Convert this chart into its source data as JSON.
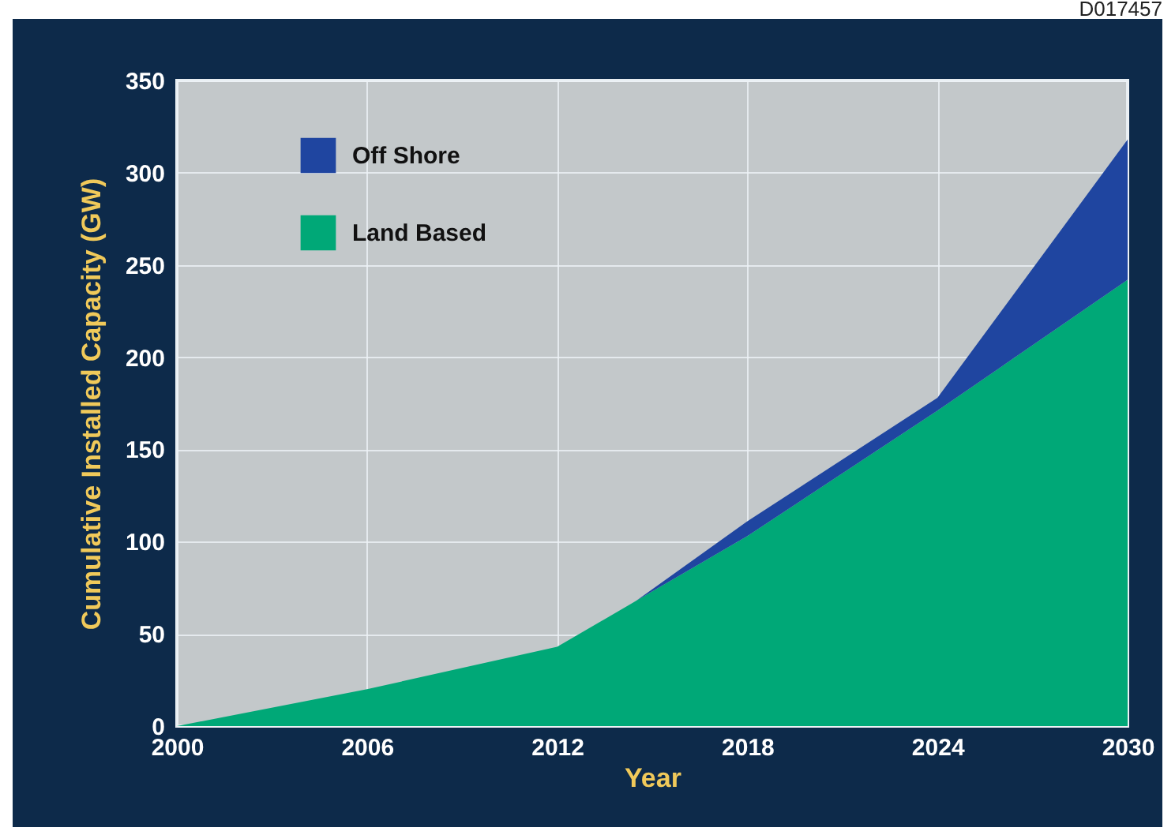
{
  "chart_data": {
    "type": "area",
    "stacked": true,
    "xlabel": "Year",
    "ylabel": "Cumulative Installed Capacity (GW)",
    "x": [
      2000,
      2006,
      2012,
      2014.5,
      2018,
      2024,
      2030
    ],
    "series": [
      {
        "name": "Land Based",
        "color": "#00a877",
        "values": [
          0,
          20,
          43,
          68,
          103,
          171,
          242
        ]
      },
      {
        "name": "Off Shore",
        "color": "#1f45a0",
        "values": [
          0,
          0,
          0,
          0,
          8,
          7,
          76
        ]
      }
    ],
    "xlim": [
      2000,
      2030
    ],
    "xticks": [
      2000,
      2006,
      2012,
      2018,
      2024,
      2030
    ],
    "ylim": [
      0,
      350
    ],
    "yticks": [
      0,
      50,
      100,
      150,
      200,
      250,
      300,
      350
    ],
    "grid": true,
    "legend": "top left",
    "annotations": [
      "D017457"
    ]
  }
}
